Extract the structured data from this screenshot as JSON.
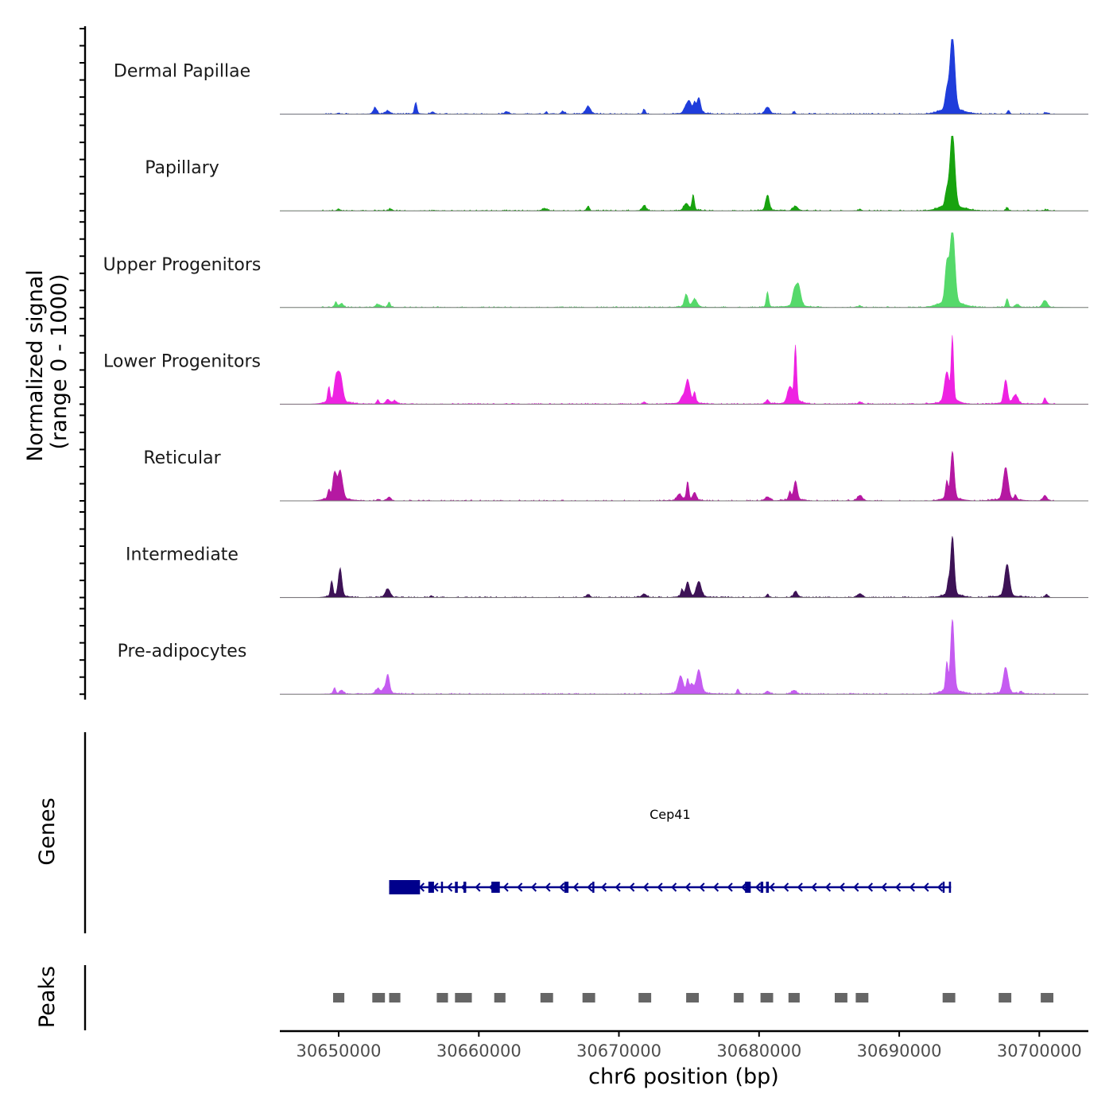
{
  "chart_data": {
    "type": "area",
    "title": "",
    "xlabel": "chr6 position (bp)",
    "ylabel": "Normalized signal",
    "ylabel_sub": "(range 0 - 1000)",
    "xlim": [
      30645800,
      30703500
    ],
    "x_ticks": [
      30650000,
      30660000,
      30670000,
      30680000,
      30690000,
      30700000
    ],
    "x_tick_labels": [
      "30650000",
      "30660000",
      "30670000",
      "30680000",
      "30690000",
      "30700000"
    ],
    "ylim": [
      0,
      1000
    ],
    "tracks": [
      {
        "name": "Dermal Papillae",
        "color": "#1f3ddb",
        "peaks": [
          [
            30650000,
            15
          ],
          [
            30652600,
            80
          ],
          [
            30653500,
            40
          ],
          [
            30655500,
            150
          ],
          [
            30656700,
            30
          ],
          [
            30662000,
            30
          ],
          [
            30664800,
            25
          ],
          [
            30666000,
            35
          ],
          [
            30667800,
            100
          ],
          [
            30671800,
            60
          ],
          [
            30674700,
            45
          ],
          [
            30675000,
            160
          ],
          [
            30675400,
            120
          ],
          [
            30675700,
            200
          ],
          [
            30680600,
            90
          ],
          [
            30682500,
            30
          ],
          [
            30693400,
            240
          ],
          [
            30693800,
            1000
          ],
          [
            30697800,
            50
          ],
          [
            30700500,
            20
          ]
        ]
      },
      {
        "name": "Papillary",
        "color": "#18a30f",
        "peaks": [
          [
            30650000,
            25
          ],
          [
            30653700,
            25
          ],
          [
            30664700,
            30
          ],
          [
            30667800,
            60
          ],
          [
            30671800,
            70
          ],
          [
            30674800,
            90
          ],
          [
            30675300,
            200
          ],
          [
            30680600,
            200
          ],
          [
            30682600,
            60
          ],
          [
            30687200,
            25
          ],
          [
            30693400,
            190
          ],
          [
            30693800,
            1000
          ],
          [
            30697700,
            40
          ],
          [
            30700500,
            15
          ]
        ]
      },
      {
        "name": "Upper Progenitors",
        "color": "#55d96a",
        "peaks": [
          [
            30649800,
            70
          ],
          [
            30650200,
            50
          ],
          [
            30652800,
            40
          ],
          [
            30653600,
            70
          ],
          [
            30674800,
            160
          ],
          [
            30675400,
            100
          ],
          [
            30680600,
            200
          ],
          [
            30682500,
            170
          ],
          [
            30682800,
            280
          ],
          [
            30687200,
            25
          ],
          [
            30693400,
            500
          ],
          [
            30693800,
            1000
          ],
          [
            30697700,
            100
          ],
          [
            30698400,
            40
          ],
          [
            30700400,
            90
          ]
        ]
      },
      {
        "name": "Lower Progenitors",
        "color": "#ee22e2",
        "peaks": [
          [
            30649300,
            200
          ],
          [
            30649800,
            280
          ],
          [
            30650100,
            370
          ],
          [
            30652800,
            50
          ],
          [
            30653500,
            60
          ],
          [
            30654000,
            40
          ],
          [
            30671800,
            30
          ],
          [
            30674500,
            70
          ],
          [
            30674900,
            300
          ],
          [
            30675400,
            140
          ],
          [
            30680600,
            50
          ],
          [
            30682200,
            200
          ],
          [
            30682600,
            720
          ],
          [
            30687200,
            30
          ],
          [
            30693400,
            380
          ],
          [
            30693800,
            820
          ],
          [
            30697600,
            300
          ],
          [
            30698300,
            110
          ],
          [
            30700400,
            80
          ]
        ]
      },
      {
        "name": "Reticular",
        "color": "#b518a2",
        "peaks": [
          [
            30649300,
            120
          ],
          [
            30649700,
            330
          ],
          [
            30650100,
            370
          ],
          [
            30652800,
            20
          ],
          [
            30653600,
            50
          ],
          [
            30674300,
            80
          ],
          [
            30674900,
            240
          ],
          [
            30675400,
            100
          ],
          [
            30680600,
            50
          ],
          [
            30682200,
            110
          ],
          [
            30682600,
            250
          ],
          [
            30687200,
            70
          ],
          [
            30693400,
            230
          ],
          [
            30693800,
            620
          ],
          [
            30697600,
            420
          ],
          [
            30698300,
            60
          ],
          [
            30700400,
            70
          ]
        ]
      },
      {
        "name": "Intermediate",
        "color": "#3d1256",
        "peaks": [
          [
            30649500,
            200
          ],
          [
            30650100,
            360
          ],
          [
            30653500,
            110
          ],
          [
            30656600,
            25
          ],
          [
            30667800,
            40
          ],
          [
            30671800,
            45
          ],
          [
            30674500,
            90
          ],
          [
            30674900,
            190
          ],
          [
            30675700,
            200
          ],
          [
            30680600,
            40
          ],
          [
            30682600,
            80
          ],
          [
            30687200,
            50
          ],
          [
            30693500,
            140
          ],
          [
            30693800,
            770
          ],
          [
            30697700,
            420
          ],
          [
            30700500,
            40
          ]
        ]
      },
      {
        "name": "Pre-adipocytes",
        "color": "#c55cf1",
        "peaks": [
          [
            30649700,
            80
          ],
          [
            30650200,
            50
          ],
          [
            30652800,
            60
          ],
          [
            30653200,
            50
          ],
          [
            30653500,
            250
          ],
          [
            30674400,
            220
          ],
          [
            30674900,
            160
          ],
          [
            30675200,
            100
          ],
          [
            30675700,
            300
          ],
          [
            30678500,
            60
          ],
          [
            30680600,
            40
          ],
          [
            30682500,
            50
          ],
          [
            30693400,
            360
          ],
          [
            30693800,
            940
          ],
          [
            30697600,
            340
          ],
          [
            30698700,
            30
          ]
        ]
      }
    ],
    "genes": [
      {
        "name": "Cep41",
        "start": 30653600,
        "end": 30693700,
        "strand": "-",
        "exons": [
          [
            30653600,
            30655800
          ],
          [
            30656400,
            30656800
          ],
          [
            30657300,
            30657400
          ],
          [
            30658300,
            30658500
          ],
          [
            30658900,
            30659100
          ],
          [
            30660900,
            30661500
          ],
          [
            30666100,
            30666400
          ],
          [
            30668100,
            30668200
          ],
          [
            30679000,
            30679400
          ],
          [
            30680100,
            30680300
          ],
          [
            30680500,
            30680700
          ],
          [
            30693100,
            30693200
          ],
          [
            30693550,
            30693700
          ]
        ]
      }
    ],
    "peak_regions": [
      [
        30649600,
        30650400
      ],
      [
        30652400,
        30653300
      ],
      [
        30653600,
        30654400
      ],
      [
        30657000,
        30657800
      ],
      [
        30658300,
        30659500
      ],
      [
        30661100,
        30661900
      ],
      [
        30664400,
        30665300
      ],
      [
        30667400,
        30668300
      ],
      [
        30671400,
        30672300
      ],
      [
        30674800,
        30675700
      ],
      [
        30678200,
        30678900
      ],
      [
        30680100,
        30681000
      ],
      [
        30682100,
        30682900
      ],
      [
        30685400,
        30686300
      ],
      [
        30686900,
        30687800
      ],
      [
        30693100,
        30694000
      ],
      [
        30697100,
        30698000
      ],
      [
        30700100,
        30701000
      ]
    ],
    "panels": {
      "signal": "Normalized signal",
      "genes": "Genes",
      "peaks": "Peaks"
    }
  }
}
